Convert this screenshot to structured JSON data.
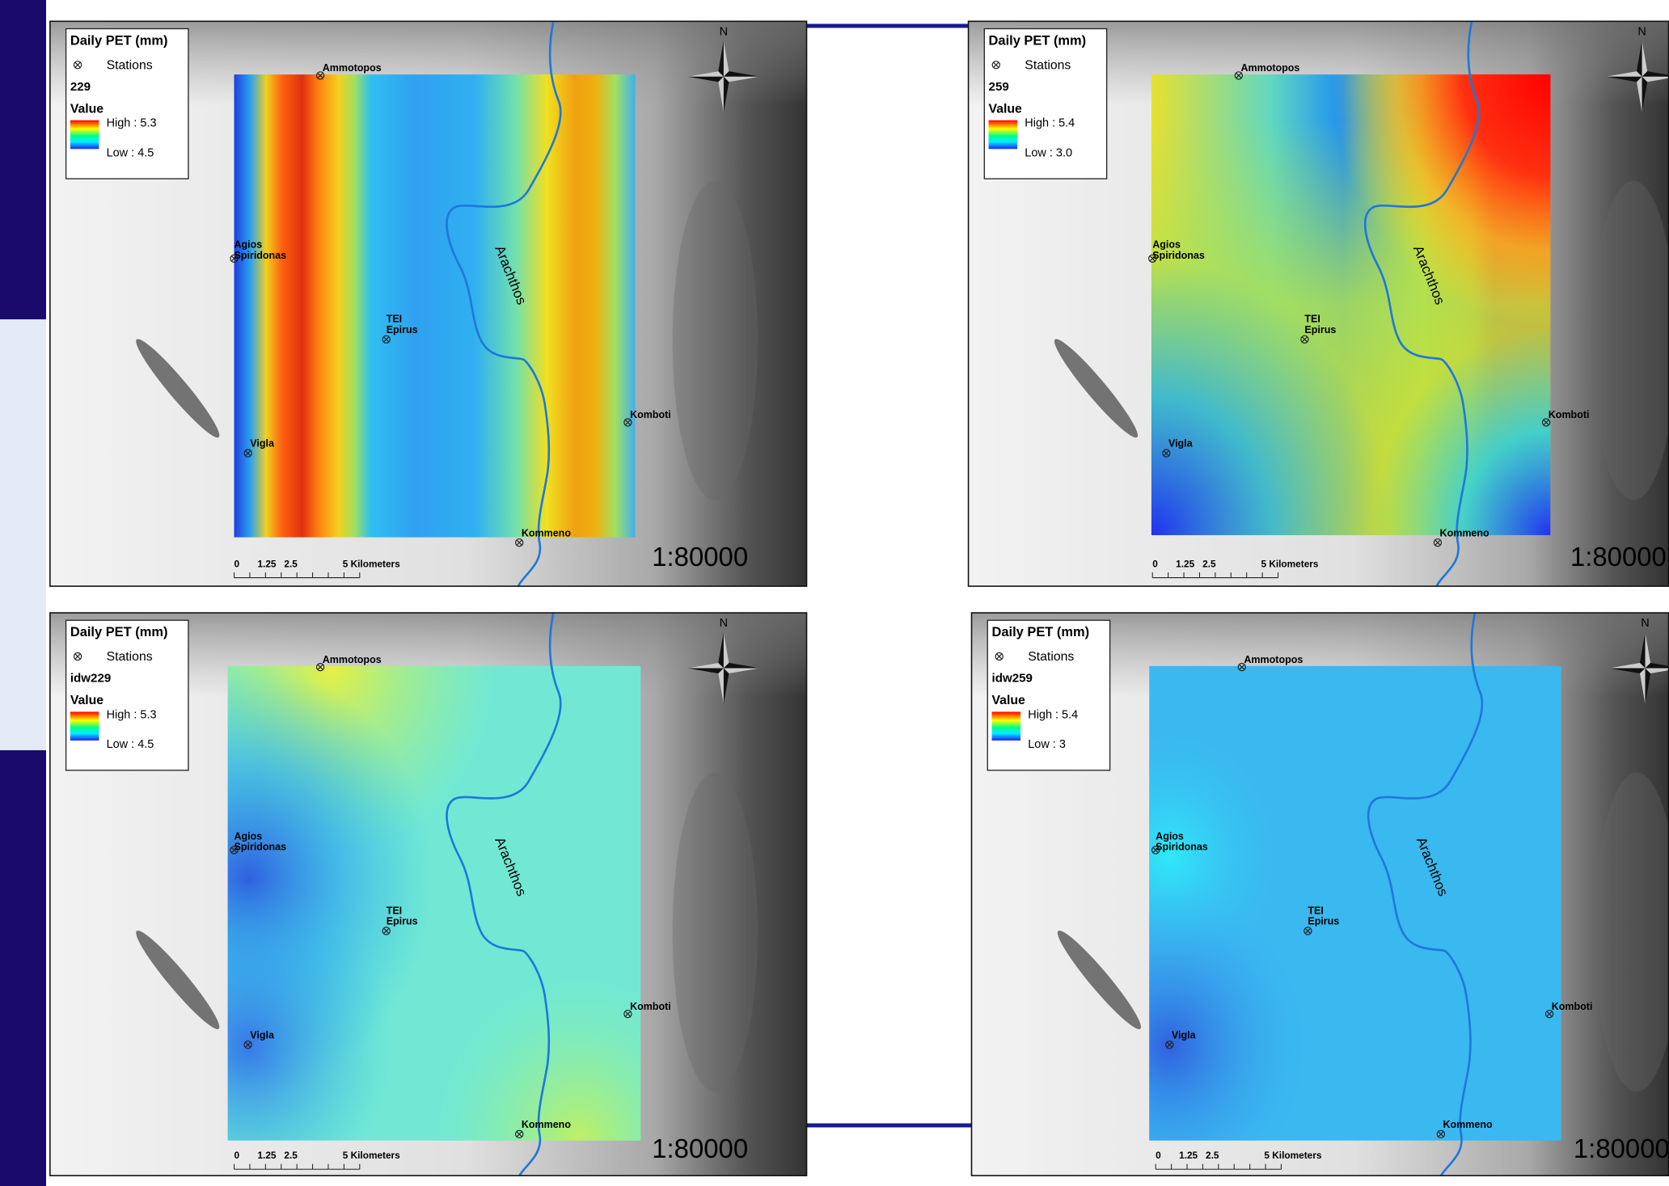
{
  "panels": [
    {
      "legend": {
        "title": "Daily PET (mm)",
        "stations": "Stations",
        "layer": "229",
        "value": "Value",
        "high": "High : 5.3",
        "low": "Low : 4.5"
      },
      "stations": [
        {
          "label": [
            "Ammotopos"
          ]
        },
        {
          "label": [
            "Agios",
            "Spiridonas"
          ]
        },
        {
          "label": [
            "TEI",
            "Epirus"
          ]
        },
        {
          "label": [
            "Vigla"
          ]
        },
        {
          "label": [
            "Komboti"
          ]
        },
        {
          "label": [
            "Kommeno"
          ]
        }
      ],
      "river": "Arachthos",
      "north": "N",
      "scale_bar": [
        "0",
        "1.25",
        "2.5",
        "5 Kilometers"
      ],
      "scale": "1:80000"
    },
    {
      "legend": {
        "title": "Daily PET (mm)",
        "stations": "Stations",
        "layer": "259",
        "value": "Value",
        "high": "High : 5.4",
        "low": "Low : 3.0"
      },
      "stations": [
        {
          "label": [
            "Ammotopos"
          ]
        },
        {
          "label": [
            "Agios",
            "Spiridonas"
          ]
        },
        {
          "label": [
            "TEI",
            "Epirus"
          ]
        },
        {
          "label": [
            "Vigla"
          ]
        },
        {
          "label": [
            "Komboti"
          ]
        },
        {
          "label": [
            "Kommeno"
          ]
        }
      ],
      "river": "Arachthos",
      "north": "N",
      "scale_bar": [
        "0",
        "1.25",
        "2.5",
        "5 Kilometers"
      ],
      "scale": "1:80000"
    },
    {
      "legend": {
        "title": "Daily PET (mm)",
        "stations": "Stations",
        "layer": "idw229",
        "value": "Value",
        "high": "High : 5.3",
        "low": "Low : 4.5"
      },
      "stations": [
        {
          "label": [
            "Ammotopos"
          ]
        },
        {
          "label": [
            "Agios",
            "Spiridonas"
          ]
        },
        {
          "label": [
            "TEI",
            "Epirus"
          ]
        },
        {
          "label": [
            "Vigla"
          ]
        },
        {
          "label": [
            "Komboti"
          ]
        },
        {
          "label": [
            "Kommeno"
          ]
        }
      ],
      "river": "Arachthos",
      "north": "N",
      "scale_bar": [
        "0",
        "1.25",
        "2.5",
        "5 Kilometers"
      ],
      "scale": "1:80000"
    },
    {
      "legend": {
        "title": "Daily PET (mm)",
        "stations": "Stations",
        "layer": "idw259",
        "value": "Value",
        "high": "High : 5.4",
        "low": "Low : 3"
      },
      "stations": [
        {
          "label": [
            "Ammotopos"
          ]
        },
        {
          "label": [
            "Agios",
            "Spiridonas"
          ]
        },
        {
          "label": [
            "TEI",
            "Epirus"
          ]
        },
        {
          "label": [
            "Vigla"
          ]
        },
        {
          "label": [
            "Komboti"
          ]
        },
        {
          "label": [
            "Kommeno"
          ]
        }
      ],
      "river": "Arachthos",
      "north": "N",
      "scale_bar": [
        "0",
        "1.25",
        "2.5",
        "5 Kilometers"
      ],
      "scale": "1:80000"
    }
  ]
}
